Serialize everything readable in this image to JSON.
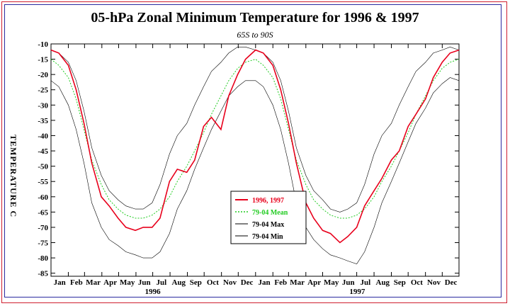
{
  "chart_data": {
    "type": "line",
    "title": "05-hPa Zonal Minimum Temperature for 1996 & 1997",
    "subtitle": "65S to 90S",
    "ylabel": "TEMPERATURE C",
    "xlabel": "",
    "ylim": [
      -86,
      -10
    ],
    "yticks": [
      -10,
      -15,
      -20,
      -25,
      -30,
      -35,
      -40,
      -45,
      -50,
      -55,
      -60,
      -65,
      -70,
      -75,
      -80,
      -85
    ],
    "xlim": [
      1,
      731
    ],
    "month_labels": [
      "Jan",
      "Feb",
      "Mar",
      "Apr",
      "May",
      "Jun",
      "Jul",
      "Aug",
      "Sep",
      "Oct",
      "Nov",
      "Dec",
      "Jan",
      "Feb",
      "Mar",
      "Apr",
      "May",
      "Jun",
      "Jul",
      "Aug",
      "Sep",
      "Oct",
      "Nov",
      "Dec"
    ],
    "year_labels": [
      "1996",
      "1997"
    ],
    "grid": false,
    "legend_position": "center-right",
    "series": [
      {
        "name": "1996, 1997",
        "color": "#e8001c",
        "x": [
          1,
          15,
          32,
          46,
          60,
          74,
          91,
          105,
          121,
          135,
          152,
          166,
          182,
          196,
          213,
          227,
          244,
          258,
          274,
          288,
          305,
          319,
          335,
          349,
          367,
          381,
          398,
          412,
          426,
          440,
          457,
          471,
          487,
          501,
          518,
          532,
          548,
          562,
          579,
          593,
          610,
          624,
          640,
          654,
          671,
          685,
          701,
          715,
          731
        ],
        "y": [
          -12,
          -13,
          -17,
          -25,
          -36,
          -49,
          -60,
          -63,
          -67,
          -70,
          -71,
          -70,
          -70,
          -67,
          -55,
          -51,
          -52,
          -48,
          -37,
          -34,
          -38,
          -27,
          -20,
          -15,
          -12,
          -13,
          -17,
          -25,
          -36,
          -49,
          -62,
          -67,
          -71,
          -72,
          -75,
          -73,
          -70,
          -63,
          -58,
          -54,
          -48,
          -45,
          -37,
          -33,
          -28,
          -21,
          -16,
          -13,
          -12
        ]
      },
      {
        "name": "79-04 Mean",
        "color": "#22cc22",
        "x": [
          1,
          15,
          32,
          46,
          60,
          74,
          91,
          105,
          121,
          135,
          152,
          166,
          182,
          196,
          213,
          227,
          244,
          258,
          274,
          288,
          305,
          319,
          335,
          349,
          367,
          381,
          398,
          412,
          426,
          440,
          457,
          471,
          487,
          501,
          518,
          532,
          548,
          562,
          579,
          593,
          610,
          624,
          640,
          654,
          671,
          685,
          701,
          715,
          731
        ],
        "y": [
          -15,
          -17,
          -21,
          -28,
          -38,
          -48,
          -56,
          -61,
          -64,
          -66,
          -67,
          -67,
          -66,
          -64,
          -60,
          -55,
          -50,
          -45,
          -39,
          -33,
          -27,
          -22,
          -18,
          -16,
          -15,
          -17,
          -21,
          -28,
          -38,
          -48,
          -56,
          -61,
          -64,
          -66,
          -67,
          -67,
          -66,
          -64,
          -60,
          -55,
          -50,
          -45,
          -39,
          -33,
          -27,
          -22,
          -18,
          -16,
          -15
        ]
      },
      {
        "name": "79-04 Max",
        "color": "#000000",
        "x": [
          1,
          15,
          32,
          46,
          60,
          74,
          91,
          105,
          121,
          135,
          152,
          166,
          182,
          196,
          213,
          227,
          244,
          258,
          274,
          288,
          305,
          319,
          335,
          349,
          367,
          381,
          398,
          412,
          426,
          440,
          457,
          471,
          487,
          501,
          518,
          532,
          548,
          562,
          579,
          593,
          610,
          624,
          640,
          654,
          671,
          685,
          701,
          715,
          731
        ],
        "y": [
          -12,
          -13,
          -16,
          -22,
          -32,
          -44,
          -53,
          -58,
          -61,
          -63,
          -64,
          -64,
          -62,
          -56,
          -46,
          -40,
          -36,
          -30,
          -24,
          -19,
          -16,
          -13,
          -11,
          -11,
          -12,
          -13,
          -16,
          -22,
          -32,
          -44,
          -53,
          -58,
          -61,
          -64,
          -65,
          -64,
          -62,
          -56,
          -46,
          -40,
          -36,
          -30,
          -24,
          -19,
          -16,
          -13,
          -12,
          -11,
          -12
        ]
      },
      {
        "name": "79-04 Min",
        "color": "#000000",
        "x": [
          1,
          15,
          32,
          46,
          60,
          74,
          91,
          105,
          121,
          135,
          152,
          166,
          182,
          196,
          213,
          227,
          244,
          258,
          274,
          288,
          305,
          319,
          335,
          349,
          367,
          381,
          398,
          412,
          426,
          440,
          457,
          471,
          487,
          501,
          518,
          532,
          548,
          562,
          579,
          593,
          610,
          624,
          640,
          654,
          671,
          685,
          701,
          715,
          731
        ],
        "y": [
          -22,
          -24,
          -30,
          -38,
          -49,
          -62,
          -70,
          -74,
          -76,
          -78,
          -79,
          -80,
          -80,
          -78,
          -72,
          -64,
          -58,
          -51,
          -44,
          -38,
          -32,
          -27,
          -24,
          -22,
          -22,
          -24,
          -30,
          -38,
          -49,
          -62,
          -70,
          -74,
          -77,
          -79,
          -80,
          -81,
          -82,
          -78,
          -70,
          -62,
          -55,
          -49,
          -42,
          -36,
          -31,
          -26,
          -23,
          -21,
          -22
        ]
      }
    ]
  }
}
